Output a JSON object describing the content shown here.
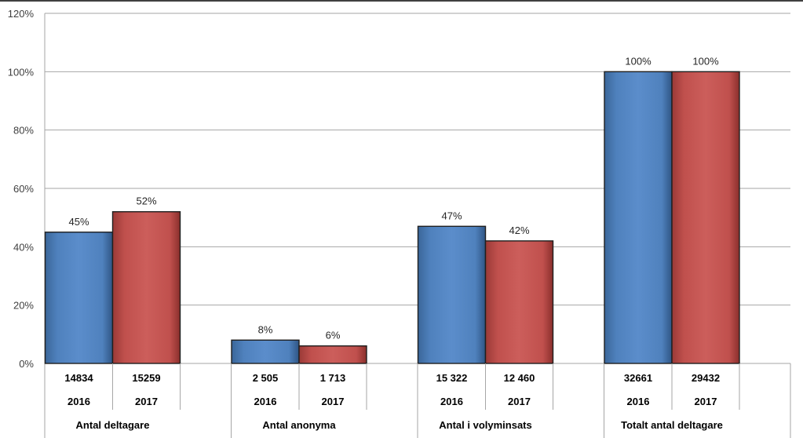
{
  "chart_data": {
    "type": "bar",
    "title": "",
    "xlabel": "",
    "ylabel": "",
    "ylim": [
      0,
      120
    ],
    "y_ticks": [
      "0%",
      "20%",
      "40%",
      "60%",
      "80%",
      "100%",
      "120%"
    ],
    "y_tick_values": [
      0,
      20,
      40,
      60,
      80,
      100,
      120
    ],
    "grid": true,
    "legend": "none",
    "colors": {
      "2016": "#4F81BD",
      "2017": "#C0504D"
    },
    "categories": [
      "Antal deltagare",
      "Antal anonyma",
      "Antal i volyminsats",
      "Totalt antal deltagare"
    ],
    "series": [
      {
        "year": "2016",
        "values": [
          45,
          8,
          47,
          100
        ],
        "data_labels": [
          "45%",
          "8%",
          "47%",
          "100%"
        ],
        "counts": [
          "14834",
          "2 505",
          "15 322",
          "32661"
        ]
      },
      {
        "year": "2017",
        "values": [
          52,
          6,
          42,
          100
        ],
        "data_labels": [
          "52%",
          "6%",
          "42%",
          "100%"
        ],
        "counts": [
          "15259",
          "1 713",
          "12 460",
          "29432"
        ]
      }
    ]
  }
}
